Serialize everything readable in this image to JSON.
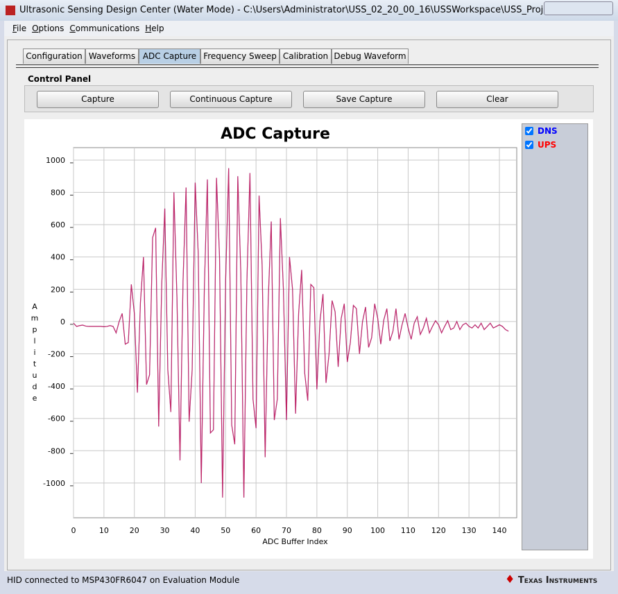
{
  "window": {
    "title": "Ultrasonic Sensing Design Center (Water Mode) - C:\\Users\\Administrator\\USS_02_20_00_16\\USSWorkspace\\USS_Project",
    "status": "HID connected to MSP430FR6047 on Evaluation Module",
    "logo": "Texas Instruments"
  },
  "menu": [
    "File",
    "Options",
    "Communications",
    "Help"
  ],
  "tabs": [
    "Configuration",
    "Waveforms",
    "ADC Capture",
    "Frequency Sweep",
    "Calibration",
    "Debug Waveform"
  ],
  "control_panel": {
    "title": "Control Panel",
    "buttons": [
      "Capture",
      "Continuous Capture",
      "Save Capture",
      "Clear"
    ]
  },
  "chart_data": {
    "type": "line",
    "title": "ADC Capture",
    "xlabel": "ADC Buffer Index",
    "ylabel": "Amplitude",
    "x": [
      0,
      1,
      2,
      3,
      4,
      5,
      6,
      7,
      8,
      9,
      10,
      11,
      12,
      13,
      14,
      15,
      16,
      17,
      18,
      19,
      20,
      21,
      22,
      23,
      24,
      25,
      26,
      27,
      28,
      29,
      30,
      31,
      32,
      33,
      34,
      35,
      36,
      37,
      38,
      39,
      40,
      41,
      42,
      43,
      44,
      45,
      46,
      47,
      48,
      49,
      50,
      51,
      52,
      53,
      54,
      55,
      56,
      57,
      58,
      59,
      60,
      61,
      62,
      63,
      64,
      65,
      66,
      67,
      68,
      69,
      70,
      71,
      72,
      73,
      74,
      75,
      76,
      77,
      78,
      79,
      80,
      81,
      82,
      83,
      84,
      85,
      86,
      87,
      88,
      89,
      90,
      91,
      92,
      93,
      94,
      95,
      96,
      97,
      98,
      99,
      100,
      101,
      102,
      103,
      104,
      105,
      106,
      107,
      108,
      109,
      110,
      111,
      112,
      113,
      114,
      115,
      116,
      117,
      118,
      119,
      120,
      121,
      122,
      123,
      124,
      125,
      126,
      127,
      128,
      129,
      130,
      131,
      132,
      133,
      134,
      135,
      136,
      137,
      138,
      139,
      140,
      141,
      142,
      143
    ],
    "series": [
      {
        "name": "DNS",
        "color": "#0000ff",
        "values": [
          -10,
          -30,
          -25,
          -22,
          -28,
          -30,
          -30,
          -30,
          -30,
          -30,
          -32,
          -30,
          -25,
          -30,
          -70,
          0,
          50,
          -140,
          -130,
          230,
          50,
          -440,
          120,
          400,
          -390,
          -330,
          520,
          580,
          -650,
          230,
          700,
          -300,
          -560,
          800,
          150,
          -860,
          250,
          830,
          -620,
          -300,
          860,
          420,
          -1000,
          200,
          880,
          -690,
          -670,
          890,
          400,
          -1090,
          250,
          950,
          -640,
          -760,
          900,
          300,
          -1090,
          250,
          920,
          -480,
          -660,
          780,
          350,
          -840,
          130,
          620,
          -610,
          -480,
          640,
          200,
          -610,
          400,
          200,
          -570,
          50,
          320,
          -320,
          -490,
          230,
          210,
          -420,
          0,
          170,
          -380,
          -200,
          130,
          60,
          -280,
          20,
          110,
          -250,
          -130,
          100,
          80,
          -200,
          0,
          90,
          -160,
          -100,
          110,
          20,
          -140,
          10,
          80,
          -120,
          -60,
          80,
          -110,
          -20,
          50,
          -40,
          -110,
          -10,
          30,
          -80,
          -40,
          20,
          -70,
          -30,
          5,
          -20,
          -70,
          -30,
          5,
          -50,
          -40,
          0,
          -50,
          -20,
          -10,
          -30,
          -40,
          -20,
          -40,
          -10,
          -50,
          -30,
          -10,
          -40,
          -30,
          -20,
          -30,
          -50,
          -60
        ]
      },
      {
        "name": "UPS",
        "color": "#ff0000",
        "values": [
          -10,
          -30,
          -25,
          -22,
          -28,
          -30,
          -30,
          -30,
          -30,
          -30,
          -32,
          -30,
          -25,
          -30,
          -70,
          0,
          50,
          -140,
          -130,
          230,
          50,
          -440,
          120,
          400,
          -390,
          -330,
          520,
          580,
          -650,
          230,
          700,
          -300,
          -560,
          800,
          150,
          -860,
          250,
          830,
          -620,
          -300,
          860,
          420,
          -1000,
          200,
          880,
          -690,
          -670,
          890,
          400,
          -1090,
          250,
          950,
          -640,
          -760,
          900,
          300,
          -1090,
          250,
          920,
          -480,
          -660,
          780,
          350,
          -840,
          130,
          620,
          -610,
          -480,
          640,
          200,
          -610,
          400,
          200,
          -570,
          50,
          320,
          -320,
          -490,
          230,
          210,
          -420,
          0,
          170,
          -380,
          -200,
          130,
          60,
          -280,
          20,
          110,
          -250,
          -130,
          100,
          80,
          -200,
          0,
          90,
          -160,
          -100,
          110,
          20,
          -140,
          10,
          80,
          -120,
          -60,
          80,
          -110,
          -20,
          50,
          -40,
          -110,
          -10,
          30,
          -80,
          -40,
          20,
          -70,
          -30,
          5,
          -20,
          -70,
          -30,
          5,
          -50,
          -40,
          0,
          -50,
          -20,
          -10,
          -30,
          -40,
          -20,
          -40,
          -10,
          -50,
          -30,
          -10,
          -40,
          -30,
          -20,
          -30,
          -50,
          -60
        ]
      }
    ],
    "xlim": [
      0,
      145.7
    ],
    "ylim": [
      -1215,
      1077
    ],
    "xticks": [
      0,
      10,
      20,
      30,
      40,
      50,
      60,
      70,
      80,
      90,
      100,
      110,
      120,
      130,
      140
    ],
    "yticks": [
      -1000,
      -800,
      -600,
      -400,
      -200,
      0,
      200,
      400,
      600,
      800,
      1000
    ],
    "grid": true
  }
}
